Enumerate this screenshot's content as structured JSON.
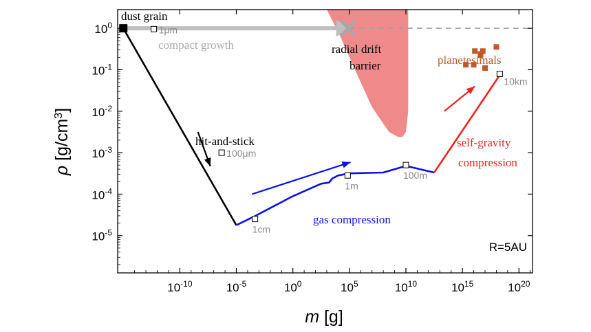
{
  "chart_data": {
    "type": "line",
    "xlabel": "m [g]",
    "ylabel": "ρ [g/cm³]",
    "xlim_log10": [
      -15.5,
      21.2
    ],
    "ylim_log10": [
      -5.9,
      0.45
    ],
    "x_ticks": [
      {
        "log": -10,
        "mant": "10",
        "exp": "-10"
      },
      {
        "log": -5,
        "mant": "10",
        "exp": "-5"
      },
      {
        "log": 0,
        "mant": "10",
        "exp": "0"
      },
      {
        "log": 5,
        "mant": "10",
        "exp": "5"
      },
      {
        "log": 10,
        "mant": "10",
        "exp": "10"
      },
      {
        "log": 15,
        "mant": "10",
        "exp": "15"
      },
      {
        "log": 20,
        "mant": "10",
        "exp": "20"
      }
    ],
    "y_ticks": [
      {
        "log": 0,
        "mant": "10",
        "exp": "0"
      },
      {
        "log": -1,
        "mant": "10",
        "exp": "-1"
      },
      {
        "log": -2,
        "mant": "10",
        "exp": "-2"
      },
      {
        "log": -3,
        "mant": "10",
        "exp": "-3"
      },
      {
        "log": -4,
        "mant": "10",
        "exp": "-4"
      },
      {
        "log": -5,
        "mant": "10",
        "exp": "-5"
      }
    ],
    "panel_label": "R=5AU",
    "series": [
      {
        "name": "compact growth",
        "color": "#bfbfbf",
        "style": "solid-thick",
        "points_log": [
          [
            -15,
            0
          ],
          [
            5,
            0
          ]
        ]
      },
      {
        "name": "compact growth (beyond barrier)",
        "color": "#a0a0a0",
        "style": "dashed",
        "points_log": [
          [
            5,
            0
          ],
          [
            21,
            0
          ]
        ]
      },
      {
        "name": "hit-and-stick",
        "color": "#000000",
        "style": "solid",
        "points_log": [
          [
            -15,
            0
          ],
          [
            -5,
            -4.75
          ]
        ]
      },
      {
        "name": "gas compression",
        "color": "#0a10e8",
        "style": "solid",
        "points_log": [
          [
            -5,
            -4.75
          ],
          [
            -3.5,
            -4.55
          ],
          [
            0,
            -4.05
          ],
          [
            2.5,
            -3.75
          ],
          [
            3.2,
            -3.72
          ],
          [
            3.5,
            -3.62
          ],
          [
            4,
            -3.55
          ],
          [
            5,
            -3.5
          ],
          [
            8,
            -3.48
          ],
          [
            10,
            -3.32
          ],
          [
            12.5,
            -3.48
          ]
        ]
      },
      {
        "name": "self-gravity compression",
        "color": "#ee2020",
        "style": "solid",
        "points_log": [
          [
            12.5,
            -3.48
          ],
          [
            18.5,
            -1.05
          ]
        ]
      }
    ],
    "size_markers": [
      {
        "label": "1μm",
        "log_m": -12.3,
        "log_rho": -0.02
      },
      {
        "label": "100μm",
        "log_m": -6.3,
        "log_rho": -3.0
      },
      {
        "label": "1cm",
        "log_m": -3.35,
        "log_rho": -4.6
      },
      {
        "label": "1m",
        "log_m": 4.85,
        "log_rho": -3.55
      },
      {
        "label": "100m",
        "log_m": 10.0,
        "log_rho": -3.3
      },
      {
        "label": "10km",
        "log_m": 18.3,
        "log_rho": -1.1
      }
    ],
    "planetesimals_log": [
      [
        16.1,
        -0.55
      ],
      [
        16.8,
        -0.55
      ],
      [
        16.6,
        -0.62
      ],
      [
        16.6,
        -0.65
      ],
      [
        18.0,
        -0.45
      ],
      [
        15.3,
        -0.88
      ],
      [
        16.0,
        -0.88
      ],
      [
        17.0,
        -0.96
      ]
    ],
    "barrier_region": {
      "label_lines": [
        "radial drift",
        "barrier"
      ],
      "color": "#f08a8a",
      "left_edge_log": [
        [
          3.0,
          0.45
        ],
        [
          4.2,
          -0.2
        ],
        [
          5.5,
          -1.0
        ],
        [
          7.0,
          -1.9
        ],
        [
          8.5,
          -2.5
        ],
        [
          9.3,
          -2.62
        ]
      ],
      "right_edge_log": [
        [
          10.2,
          0.45
        ],
        [
          10.2,
          -2.0
        ],
        [
          10.0,
          -2.5
        ],
        [
          9.7,
          -2.62
        ]
      ]
    },
    "annotations": {
      "dust_grain": "dust grain",
      "compact_growth": "compact growth",
      "hit_and_stick": "hit-and-stick",
      "gas_compression": "gas compression",
      "self_gravity_line1": "self-gravity",
      "self_gravity_line2": "compression",
      "planetesimals": "planetesimals"
    },
    "colors": {
      "planetesimal": "#c0582a",
      "gas": "#0a10e8",
      "selfgrav": "#ee2020",
      "compact": "#bfbfbf",
      "cross": "#a8a8a8"
    }
  }
}
